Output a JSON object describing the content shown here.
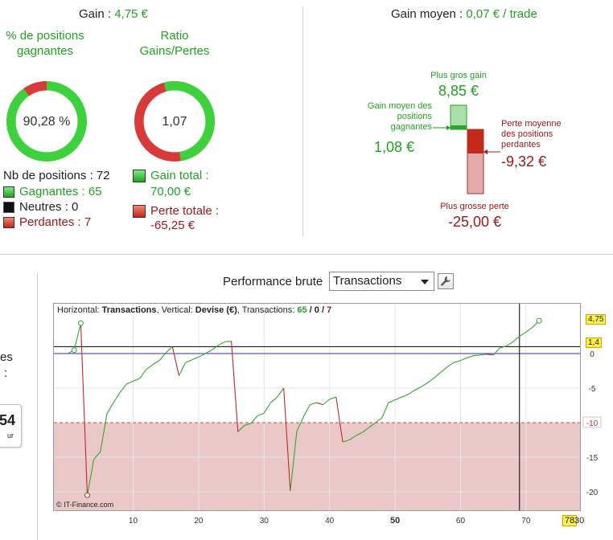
{
  "summary": {
    "gain_label": "Gain : ",
    "gain_value": "4,75 €",
    "pct_title": "% de positions gagnantes",
    "pct_value": "90,28 %",
    "pct_fraction": 0.9028,
    "ratio_title": "Ratio Gains/Pertes",
    "ratio_value": "1,07",
    "ratio_fraction": 0.5187,
    "positions_label": "Nb de positions : 72",
    "winners_label": "Gagnantes : 65",
    "neutral_label": "Neutres : 0",
    "losers_label": "Perdantes : 7",
    "total_gain_label": "Gain total :",
    "total_gain_value": "70,00 €",
    "total_loss_label": "Perte totale :",
    "total_loss_value": "-65,25 €"
  },
  "avg": {
    "title_label": "Gain moyen : ",
    "title_value": "0,07 € / trade",
    "biggest_gain_label": "Plus gros gain",
    "biggest_gain_value": "8,85 €",
    "avg_win_label_1": "Gain moyen des",
    "avg_win_label_2": "positions",
    "avg_win_label_3": "gagnantes",
    "avg_win_value": "1,08 €",
    "avg_loss_label_1": "Perte moyenne",
    "avg_loss_label_2": "des positions",
    "avg_loss_label_3": "perdantes",
    "avg_loss_value": "-9,32 €",
    "biggest_loss_label": "Plus grosse perte",
    "biggest_loss_value": "-25,00 €"
  },
  "left_fragments": {
    "frag1": "es",
    "frag2": ":",
    "frag3": "54",
    "frag4": "ur"
  },
  "perf": {
    "title": "Performance brute",
    "select_value": "Transactions",
    "info_horizontal_label": "Horizontal: ",
    "info_horizontal_value": "Transactions",
    "info_vertical_label": ", Vertical: ",
    "info_vertical_value": "Devise (€)",
    "info_trans_label": ", Transactions: ",
    "info_wins": "65",
    "info_sep1": " / ",
    "info_neutral": "0",
    "info_sep2": " / ",
    "info_losses": "7",
    "copyright": "© IT-Finance.com",
    "label_last": "4,75",
    "label_cursor": "1,4",
    "cursor_x_label": "78",
    "x_end_label": "30"
  },
  "colors": {
    "green": "#22a222",
    "dark_red": "#a01818",
    "ring_green": "#3ed13e",
    "ring_red": "#d83a3a",
    "zone_fill": "#ebc8c8"
  },
  "chart_data": {
    "type": "line",
    "xlabel": "",
    "ylabel": "",
    "xlim": [
      0,
      80
    ],
    "ylim": [
      -23,
      6
    ],
    "x_ticks": [
      10,
      20,
      30,
      40,
      50,
      60,
      70
    ],
    "x_tick_labels": [
      "10",
      "20",
      "30",
      "40",
      "50",
      "60",
      "70"
    ],
    "y_ticks": [
      0,
      -5,
      -10,
      -15,
      -20
    ],
    "y_tick_labels": [
      "0",
      "-5",
      "-10",
      "-15",
      "-20"
    ],
    "reference_lines": {
      "black_horizontal": 1.0,
      "blue_zero": 0,
      "loss_limit_dashed": -10,
      "cursor_x": 69
    },
    "shaded_zone_below": -10,
    "series": [
      {
        "x": [
          0,
          1,
          2,
          3,
          4,
          5,
          6,
          7,
          8,
          9,
          10,
          11,
          12,
          13,
          14,
          15,
          16,
          17,
          18,
          19,
          20,
          21,
          22,
          23,
          24,
          25,
          26,
          27,
          28,
          29,
          30,
          31,
          32,
          33,
          34,
          35,
          36,
          37,
          38,
          39,
          40,
          41,
          42,
          43,
          44,
          45,
          46,
          47,
          48,
          49,
          50,
          51,
          52,
          53,
          54,
          55,
          56,
          57,
          58,
          59,
          60,
          61,
          62,
          63,
          64,
          65,
          66,
          67,
          68,
          69,
          70,
          71,
          72
        ],
        "y": [
          0,
          0.5,
          4.4,
          -20.5,
          -15.3,
          -14.2,
          -8.7,
          -7.1,
          -5.6,
          -4.4,
          -4.0,
          -3.6,
          -2.3,
          -1.6,
          -1.0,
          0.1,
          1.0,
          -3.2,
          -1.3,
          -0.9,
          -0.5,
          0,
          0.5,
          1.2,
          1.7,
          1.8,
          -11.3,
          -10.4,
          -10.1,
          -9.0,
          -8.6,
          -7.1,
          -6.3,
          -5.0,
          -19.9,
          -11.2,
          -9.2,
          -7.4,
          -7.1,
          -7.4,
          -6.6,
          -6.3,
          -12.8,
          -12.5,
          -11.9,
          -11.4,
          -10.7,
          -10.0,
          -9.3,
          -7.1,
          -6.7,
          -6.3,
          -5.9,
          -5.3,
          -4.8,
          -4.2,
          -3.5,
          -2.7,
          -1.9,
          -1.3,
          -1.0,
          -0.6,
          -0.3,
          -0.2,
          -0.1,
          -0.2,
          0.8,
          1.1,
          1.7,
          2.5,
          3.1,
          3.8,
          4.75
        ]
      }
    ]
  }
}
